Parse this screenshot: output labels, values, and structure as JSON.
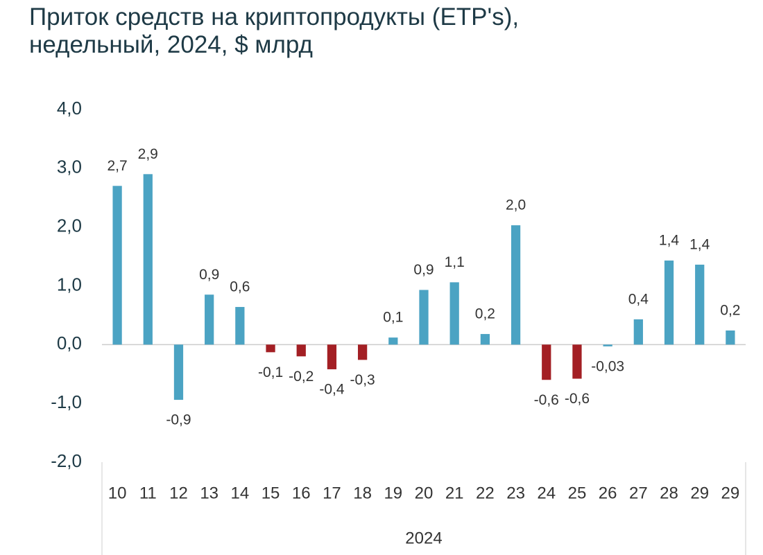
{
  "chart_data": {
    "type": "bar",
    "title": [
      "Приток средств на криптопродукты (ETP's),",
      "недельный, 2024, $ млрд"
    ],
    "categories": [
      "10",
      "11",
      "12",
      "13",
      "14",
      "15",
      "16",
      "17",
      "18",
      "19",
      "20",
      "21",
      "22",
      "23",
      "24",
      "25",
      "26",
      "27",
      "28",
      "29",
      "29"
    ],
    "values": [
      2.7,
      2.9,
      -0.94,
      0.85,
      0.64,
      -0.13,
      -0.2,
      -0.42,
      -0.26,
      0.12,
      0.93,
      1.06,
      0.18,
      2.03,
      -0.6,
      -0.58,
      -0.03,
      0.43,
      1.43,
      1.36,
      0.24
    ],
    "value_labels": [
      "2,7",
      "2,9",
      "-0,9",
      "0,9",
      "0,6",
      "-0,1",
      "-0,2",
      "-0,4",
      "-0,3",
      "0,1",
      "0,9",
      "1,1",
      "0,2",
      "2,0",
      "-0,6",
      "-0,6",
      "-0,03",
      "0,4",
      "1,4",
      "1,4",
      "0,2"
    ],
    "colors": [
      "#4ba3c3",
      "#4ba3c3",
      "#4ba3c3",
      "#4ba3c3",
      "#4ba3c3",
      "#a31f24",
      "#a31f24",
      "#a31f24",
      "#a31f24",
      "#4ba3c3",
      "#4ba3c3",
      "#4ba3c3",
      "#4ba3c3",
      "#4ba3c3",
      "#a31f24",
      "#a31f24",
      "#4ba3c3",
      "#4ba3c3",
      "#4ba3c3",
      "#4ba3c3",
      "#4ba3c3"
    ],
    "xlabel": "2024",
    "ylim": [
      -2,
      4
    ],
    "yticks": [
      {
        "value": -2,
        "label": "-2,0"
      },
      {
        "value": -1,
        "label": "-1,0"
      },
      {
        "value": 0,
        "label": "0,0"
      },
      {
        "value": 1,
        "label": "1,0"
      },
      {
        "value": 2,
        "label": "2,0"
      },
      {
        "value": 3,
        "label": "3,0"
      },
      {
        "value": 4,
        "label": "4,0"
      }
    ],
    "grid": false
  }
}
